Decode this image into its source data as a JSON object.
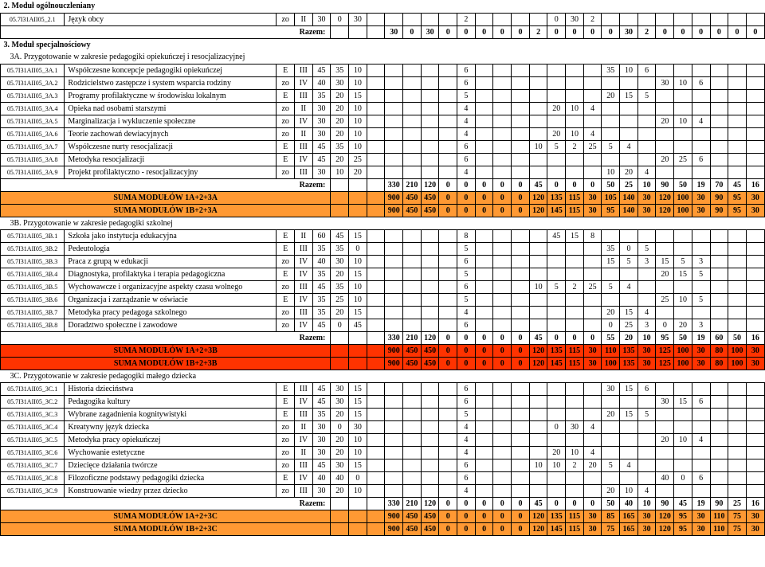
{
  "colors": {
    "orange": "#ff9933",
    "red": "#ff3300",
    "background": "#ffffff",
    "border": "#000000"
  },
  "section2": {
    "title": "2. Moduł ogólnouczleniany",
    "row": {
      "code": "05.7I31AII05_2.1",
      "name": "Język obcy",
      "cells": [
        "zo",
        "II",
        "30",
        "0",
        "30",
        "",
        "",
        "",
        "",
        "",
        "2",
        "",
        "",
        "",
        "",
        "0",
        "30",
        "2",
        "",
        "",
        "",
        "",
        "",
        ""
      ]
    },
    "razem": [
      "30",
      "0",
      "30",
      "0",
      "0",
      "0",
      "0",
      "0",
      "2",
      "0",
      "0",
      "0",
      "0",
      "30",
      "2",
      "0",
      "0",
      "0",
      "0",
      "0",
      "0"
    ]
  },
  "section3": {
    "title": "3. Moduł specjalnościowy"
  },
  "sec3A": {
    "title": "3A. Przygotowanie w zakresie pedagogiki opiekuńczej i resocjalizacyjnej",
    "rows": [
      {
        "code": "05.7I31AII05_3A.1",
        "name": "Współczesne koncepcje pedagogiki opiekuńczej",
        "cells": [
          "E",
          "III",
          "45",
          "35",
          "10",
          "",
          "",
          "",
          "",
          "",
          "6",
          "",
          "",
          "",
          "",
          "",
          "",
          "",
          "35",
          "10",
          "6",
          "",
          "",
          ""
        ]
      },
      {
        "code": "05.7I31AII05_3A.2",
        "name": "Rodzicielstwo zastępcze i system wsparcia rodziny",
        "cells": [
          "zo",
          "IV",
          "40",
          "30",
          "10",
          "",
          "",
          "",
          "",
          "",
          "6",
          "",
          "",
          "",
          "",
          "",
          "",
          "",
          "",
          "",
          "",
          "30",
          "10",
          "6"
        ]
      },
      {
        "code": "05.7I31AII05_3A.3",
        "name": "Programy profilaktyczne w środowisku lokalnym",
        "cells": [
          "E",
          "III",
          "35",
          "20",
          "15",
          "",
          "",
          "",
          "",
          "",
          "5",
          "",
          "",
          "",
          "",
          "",
          "",
          "",
          "20",
          "15",
          "5",
          "",
          "",
          ""
        ]
      },
      {
        "code": "05.7I31AII05_3A.4",
        "name": "Opieka nad osobami starszymi",
        "cells": [
          "zo",
          "II",
          "30",
          "20",
          "10",
          "",
          "",
          "",
          "",
          "",
          "4",
          "",
          "",
          "",
          "",
          "20",
          "10",
          "4",
          "",
          "",
          "",
          "",
          "",
          ""
        ]
      },
      {
        "code": "05.7I31AII05_3A.5",
        "name": "Marginalizacja i wykluczenie społeczne",
        "cells": [
          "zo",
          "IV",
          "30",
          "20",
          "10",
          "",
          "",
          "",
          "",
          "",
          "4",
          "",
          "",
          "",
          "",
          "",
          "",
          "",
          "",
          "",
          "",
          "20",
          "10",
          "4"
        ]
      },
      {
        "code": "05.7I31AII05_3A.6",
        "name": "Teorie zachowań dewiacyjnych",
        "cells": [
          "zo",
          "II",
          "30",
          "20",
          "10",
          "",
          "",
          "",
          "",
          "",
          "4",
          "",
          "",
          "",
          "",
          "20",
          "10",
          "4",
          "",
          "",
          "",
          "",
          "",
          ""
        ]
      },
      {
        "code": "05.7I31AII05_3A.7",
        "name": "Współczesne nurty resocjalizacji",
        "cells": [
          "E",
          "III",
          "45",
          "35",
          "10",
          "",
          "",
          "",
          "",
          "",
          "6",
          "",
          "",
          "",
          "10",
          "5",
          "2",
          "25",
          "5",
          "4",
          "",
          "",
          "",
          ""
        ]
      },
      {
        "code": "05.7I31AII05_3A.8",
        "name": "Metodyka resocjalizacji",
        "cells": [
          "E",
          "IV",
          "45",
          "20",
          "25",
          "",
          "",
          "",
          "",
          "",
          "6",
          "",
          "",
          "",
          "",
          "",
          "",
          "",
          "",
          "",
          "",
          "20",
          "25",
          "6"
        ]
      },
      {
        "code": "05.7I31AII05_3A.9",
        "name": "Projekt profilaktyczno - resocjalizacyjny",
        "cells": [
          "zo",
          "III",
          "30",
          "10",
          "20",
          "",
          "",
          "",
          "",
          "",
          "4",
          "",
          "",
          "",
          "",
          "",
          "",
          "",
          "10",
          "20",
          "4",
          "",
          "",
          ""
        ]
      }
    ],
    "razem": [
      "330",
      "210",
      "120",
      "0",
      "0",
      "0",
      "0",
      "0",
      "45",
      "0",
      "0",
      "0",
      "50",
      "25",
      "10",
      "90",
      "50",
      "19",
      "70",
      "45",
      "16"
    ],
    "sumaA": {
      "label": "SUMA MODUŁÓW 1A+2+3A",
      "cells": [
        "900",
        "450",
        "450",
        "0",
        "0",
        "0",
        "0",
        "0",
        "120",
        "135",
        "115",
        "30",
        "105",
        "140",
        "30",
        "120",
        "100",
        "30",
        "90",
        "95",
        "30"
      ]
    },
    "sumaB": {
      "label": "SUMA MODUŁÓW 1B+2+3A",
      "cells": [
        "900",
        "450",
        "450",
        "0",
        "0",
        "0",
        "0",
        "0",
        "120",
        "145",
        "115",
        "30",
        "95",
        "140",
        "30",
        "120",
        "100",
        "30",
        "90",
        "95",
        "30"
      ]
    }
  },
  "sec3B": {
    "title": "3B. Przygotowanie w zakresie pedagogiki szkolnej",
    "rows": [
      {
        "code": "05.7I31AII05_3B.1",
        "name": "Szkoła jako instytucja edukacyjna",
        "cells": [
          "E",
          "II",
          "60",
          "45",
          "15",
          "",
          "",
          "",
          "",
          "",
          "8",
          "",
          "",
          "",
          "",
          "45",
          "15",
          "8",
          "",
          "",
          "",
          "",
          "",
          ""
        ]
      },
      {
        "code": "05.7I31AII05_3B.2",
        "name": "Pedeutologia",
        "cells": [
          "E",
          "III",
          "35",
          "35",
          "0",
          "",
          "",
          "",
          "",
          "",
          "5",
          "",
          "",
          "",
          "",
          "",
          "",
          "",
          "35",
          "0",
          "5",
          "",
          "",
          ""
        ]
      },
      {
        "code": "05.7I31AII05_3B.3",
        "name": "Praca z grupą w edukacji",
        "cells": [
          "zo",
          "IV",
          "40",
          "30",
          "10",
          "",
          "",
          "",
          "",
          "",
          "6",
          "",
          "",
          "",
          "",
          "",
          "",
          "",
          "15",
          "5",
          "3",
          "15",
          "5",
          "3"
        ]
      },
      {
        "code": "05.7I31AII05_3B.4",
        "name": "Diagnostyka, profilaktyka i terapia pedagogiczna",
        "cells": [
          "E",
          "IV",
          "35",
          "20",
          "15",
          "",
          "",
          "",
          "",
          "",
          "5",
          "",
          "",
          "",
          "",
          "",
          "",
          "",
          "",
          "",
          "",
          "20",
          "15",
          "5"
        ]
      },
      {
        "code": "05.7I31AII05_3B.5",
        "name": "Wychowawcze i organizacyjne aspekty czasu wolnego",
        "cells": [
          "zo",
          "III",
          "45",
          "35",
          "10",
          "",
          "",
          "",
          "",
          "",
          "6",
          "",
          "",
          "",
          "10",
          "5",
          "2",
          "25",
          "5",
          "4",
          "",
          "",
          "",
          ""
        ]
      },
      {
        "code": "05.7I31AII05_3B.6",
        "name": "Organizacja i zarządzanie w oświacie",
        "cells": [
          "E",
          "IV",
          "35",
          "25",
          "10",
          "",
          "",
          "",
          "",
          "",
          "5",
          "",
          "",
          "",
          "",
          "",
          "",
          "",
          "",
          "",
          "",
          "25",
          "10",
          "5"
        ]
      },
      {
        "code": "05.7I31AII05_3B.7",
        "name": "Metodyka pracy pedagoga szkolnego",
        "cells": [
          "zo",
          "III",
          "35",
          "20",
          "15",
          "",
          "",
          "",
          "",
          "",
          "4",
          "",
          "",
          "",
          "",
          "",
          "",
          "",
          "20",
          "15",
          "4",
          "",
          "",
          ""
        ]
      },
      {
        "code": "05.7I31AII05_3B.8",
        "name": "Doradztwo społeczne i zawodowe",
        "cells": [
          "zo",
          "IV",
          "45",
          "0",
          "45",
          "",
          "",
          "",
          "",
          "",
          "6",
          "",
          "",
          "",
          "",
          "",
          "",
          "",
          "0",
          "25",
          "3",
          "0",
          "20",
          "3"
        ]
      }
    ],
    "razem": [
      "330",
      "210",
      "120",
      "0",
      "0",
      "0",
      "0",
      "0",
      "45",
      "0",
      "0",
      "0",
      "55",
      "20",
      "10",
      "95",
      "50",
      "19",
      "60",
      "50",
      "16"
    ],
    "sumaA": {
      "label": "SUMA MODUŁÓW 1A+2+3B",
      "cells": [
        "900",
        "450",
        "450",
        "0",
        "0",
        "0",
        "0",
        "0",
        "120",
        "135",
        "115",
        "30",
        "110",
        "135",
        "30",
        "125",
        "100",
        "30",
        "80",
        "100",
        "30"
      ]
    },
    "sumaB": {
      "label": "SUMA MODUŁÓW 1B+2+3B",
      "cells": [
        "900",
        "450",
        "450",
        "0",
        "0",
        "0",
        "0",
        "0",
        "120",
        "145",
        "115",
        "30",
        "100",
        "135",
        "30",
        "125",
        "100",
        "30",
        "80",
        "100",
        "30"
      ]
    }
  },
  "sec3C": {
    "title": "3C. Przygotowanie w zakresie pedagogiki małego dziecka",
    "rows": [
      {
        "code": "05.7I31AII05_3C.1",
        "name": "Historia dzieciństwa",
        "cells": [
          "E",
          "III",
          "45",
          "30",
          "15",
          "",
          "",
          "",
          "",
          "",
          "6",
          "",
          "",
          "",
          "",
          "",
          "",
          "",
          "30",
          "15",
          "6",
          "",
          "",
          ""
        ]
      },
      {
        "code": "05.7I31AII05_3C.2",
        "name": "Pedagogika kultury",
        "cells": [
          "E",
          "IV",
          "45",
          "30",
          "15",
          "",
          "",
          "",
          "",
          "",
          "6",
          "",
          "",
          "",
          "",
          "",
          "",
          "",
          "",
          "",
          "",
          "30",
          "15",
          "6"
        ]
      },
      {
        "code": "05.7I31AII05_3C.3",
        "name": "Wybrane zagadnienia kognitywistyki",
        "cells": [
          "E",
          "III",
          "35",
          "20",
          "15",
          "",
          "",
          "",
          "",
          "",
          "5",
          "",
          "",
          "",
          "",
          "",
          "",
          "",
          "20",
          "15",
          "5",
          "",
          "",
          ""
        ]
      },
      {
        "code": "05.7I31AII05_3C.4",
        "name": "Kreatywny język dziecka",
        "cells": [
          "zo",
          "II",
          "30",
          "0",
          "30",
          "",
          "",
          "",
          "",
          "",
          "4",
          "",
          "",
          "",
          "",
          "0",
          "30",
          "4",
          "",
          "",
          "",
          "",
          "",
          ""
        ]
      },
      {
        "code": "05.7I31AII05_3C.5",
        "name": "Metodyka pracy opiekuńczej",
        "cells": [
          "zo",
          "IV",
          "30",
          "20",
          "10",
          "",
          "",
          "",
          "",
          "",
          "4",
          "",
          "",
          "",
          "",
          "",
          "",
          "",
          "",
          "",
          "",
          "20",
          "10",
          "4"
        ]
      },
      {
        "code": "05.7I31AII05_3C.6",
        "name": "Wychowanie estetyczne",
        "cells": [
          "zo",
          "II",
          "30",
          "20",
          "10",
          "",
          "",
          "",
          "",
          "",
          "4",
          "",
          "",
          "",
          "",
          "20",
          "10",
          "4",
          "",
          "",
          "",
          "",
          "",
          ""
        ]
      },
      {
        "code": "05.7I31AII05_3C.7",
        "name": "Dziecięce działania twórcze",
        "cells": [
          "zo",
          "III",
          "45",
          "30",
          "15",
          "",
          "",
          "",
          "",
          "",
          "6",
          "",
          "",
          "",
          "10",
          "10",
          "2",
          "20",
          "5",
          "4",
          "",
          "",
          "",
          ""
        ]
      },
      {
        "code": "05.7I31AII05_3C.8",
        "name": "Filozoficzne podstawy pedagogiki dziecka",
        "cells": [
          "E",
          "IV",
          "40",
          "40",
          "0",
          "",
          "",
          "",
          "",
          "",
          "6",
          "",
          "",
          "",
          "",
          "",
          "",
          "",
          "",
          "",
          "",
          "40",
          "0",
          "6"
        ]
      },
      {
        "code": "05.7I31AII05_3C.9",
        "name": "Konstruowanie wiedzy przez dziecko",
        "cells": [
          "zo",
          "III",
          "30",
          "20",
          "10",
          "",
          "",
          "",
          "",
          "",
          "4",
          "",
          "",
          "",
          "",
          "",
          "",
          "",
          "20",
          "10",
          "4",
          "",
          "",
          ""
        ]
      }
    ],
    "razem": [
      "330",
      "210",
      "120",
      "0",
      "0",
      "0",
      "0",
      "0",
      "45",
      "0",
      "0",
      "0",
      "50",
      "40",
      "10",
      "90",
      "45",
      "19",
      "90",
      "25",
      "16"
    ],
    "sumaA": {
      "label": "SUMA MODUŁÓW 1A+2+3C",
      "cells": [
        "900",
        "450",
        "450",
        "0",
        "0",
        "0",
        "0",
        "0",
        "120",
        "135",
        "115",
        "30",
        "85",
        "165",
        "30",
        "120",
        "95",
        "30",
        "110",
        "75",
        "30"
      ]
    },
    "sumaB": {
      "label": "SUMA MODUŁÓW 1B+2+3C",
      "cells": [
        "900",
        "450",
        "450",
        "0",
        "0",
        "0",
        "0",
        "0",
        "120",
        "145",
        "115",
        "30",
        "75",
        "165",
        "30",
        "120",
        "95",
        "30",
        "110",
        "75",
        "30"
      ]
    }
  },
  "labels": {
    "razem": "Razem:"
  }
}
